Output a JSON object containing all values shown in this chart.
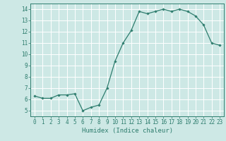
{
  "x": [
    0,
    1,
    2,
    3,
    4,
    5,
    6,
    7,
    8,
    9,
    10,
    11,
    12,
    13,
    14,
    15,
    16,
    17,
    18,
    19,
    20,
    21,
    22,
    23
  ],
  "y": [
    6.3,
    6.1,
    6.1,
    6.4,
    6.4,
    6.5,
    5.0,
    5.3,
    5.5,
    7.0,
    9.4,
    11.0,
    12.1,
    13.8,
    13.6,
    13.8,
    14.0,
    13.8,
    14.0,
    13.8,
    13.4,
    12.6,
    11.0,
    10.8
  ],
  "line_color": "#2e7d6e",
  "marker": "D",
  "marker_size": 1.8,
  "linewidth": 0.9,
  "bg_color": "#cde8e5",
  "grid_color": "#ffffff",
  "xlabel": "Humidex (Indice chaleur)",
  "xlabel_color": "#2e7d6e",
  "xlabel_fontsize": 6.5,
  "tick_color": "#2e7d6e",
  "tick_fontsize": 5.5,
  "xlim": [
    -0.5,
    23.5
  ],
  "ylim": [
    4.5,
    14.5
  ],
  "yticks": [
    5,
    6,
    7,
    8,
    9,
    10,
    11,
    12,
    13,
    14
  ],
  "xticks": [
    0,
    1,
    2,
    3,
    4,
    5,
    6,
    7,
    8,
    9,
    10,
    11,
    12,
    13,
    14,
    15,
    16,
    17,
    18,
    19,
    20,
    21,
    22,
    23
  ]
}
